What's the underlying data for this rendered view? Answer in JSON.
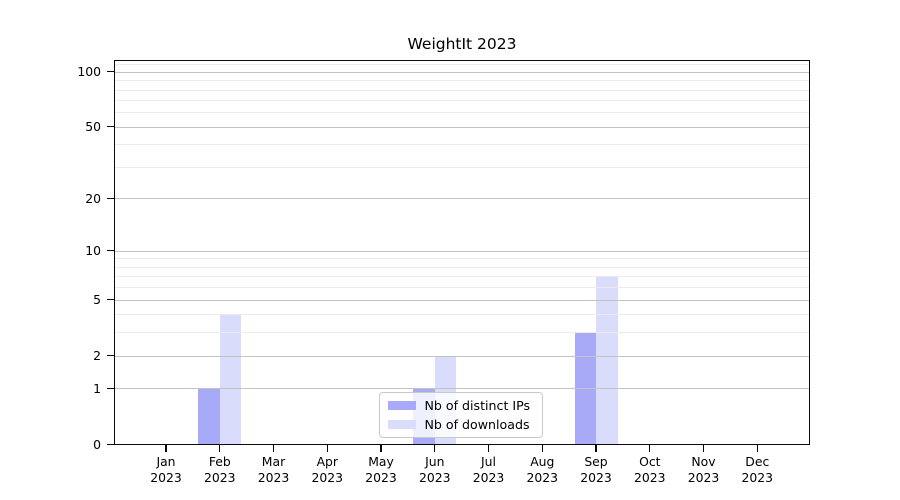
{
  "chart_data": {
    "type": "bar",
    "title": "WeightIt 2023",
    "categories": [
      "Jan",
      "Feb",
      "Mar",
      "Apr",
      "May",
      "Jun",
      "Jul",
      "Aug",
      "Sep",
      "Oct",
      "Nov",
      "Dec"
    ],
    "year_label": "2023",
    "series": [
      {
        "name": "Nb of distinct IPs",
        "color": "#a8aaf7",
        "values": [
          0,
          1,
          0,
          0,
          0,
          1,
          0,
          0,
          3,
          0,
          0,
          0
        ]
      },
      {
        "name": "Nb of downloads",
        "color": "#d9dcfa",
        "values": [
          0,
          4,
          0,
          0,
          0,
          2,
          0,
          0,
          7,
          0,
          0,
          0
        ]
      }
    ],
    "yscale": "log1p",
    "ylim": [
      0,
      116
    ],
    "yticks": [
      0,
      1,
      2,
      5,
      10,
      20,
      50,
      100
    ],
    "yticks_minor": [
      3,
      4,
      6,
      7,
      8,
      9,
      30,
      40,
      60,
      70,
      80,
      90,
      110
    ],
    "grid": "on",
    "legend_position": "inside-bottom-center",
    "colors": {
      "major_grid": "#c3c3c3",
      "minor_grid": "#ebebeb",
      "spine": "#0a0a0a",
      "background": "#ffffff"
    }
  }
}
